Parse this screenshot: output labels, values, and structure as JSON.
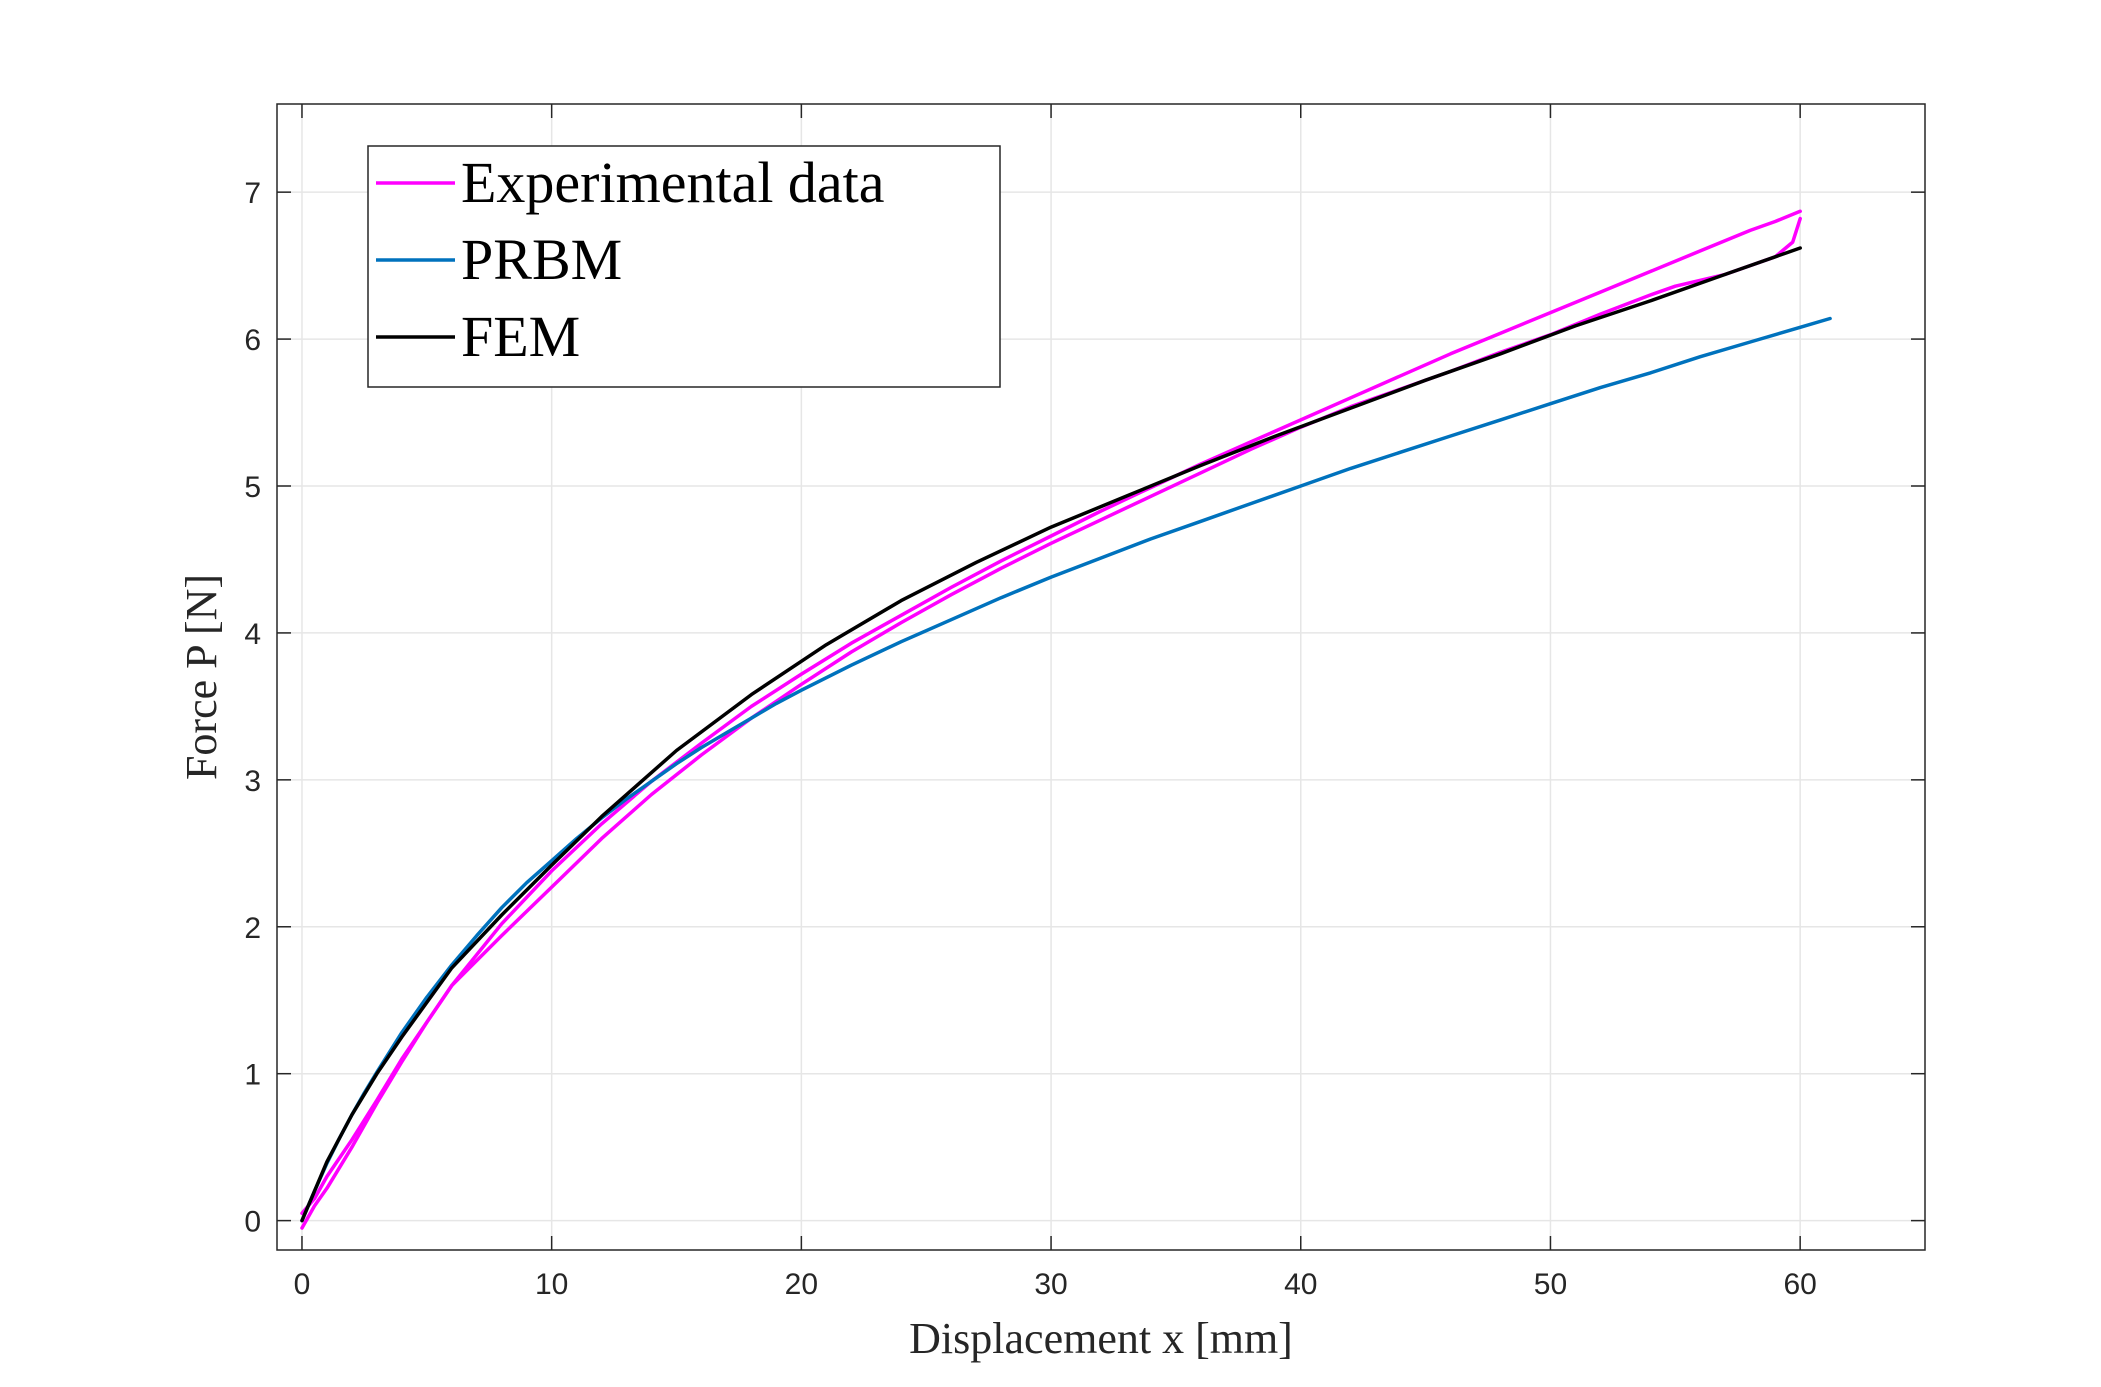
{
  "chart_data": {
    "type": "line",
    "xlabel": "Displacement x [mm]",
    "ylabel": "Force P [N]",
    "xlim": [
      -1,
      65
    ],
    "ylim": [
      -0.2,
      7.6
    ],
    "xticks": [
      0,
      10,
      20,
      30,
      40,
      50,
      60
    ],
    "yticks": [
      0,
      1,
      2,
      3,
      4,
      5,
      6,
      7
    ],
    "xtick_labels": [
      "0",
      "10",
      "20",
      "30",
      "40",
      "50",
      "60"
    ],
    "ytick_labels": [
      "0",
      "1",
      "2",
      "3",
      "4",
      "5",
      "6",
      "7"
    ],
    "grid": true,
    "legend_position": "top-left",
    "series": [
      {
        "name": "Experimental data",
        "color": "#ff00ff",
        "x": [
          0,
          0.5,
          1,
          2,
          3,
          4,
          5,
          6,
          8,
          10,
          12,
          14,
          16,
          18,
          20,
          22,
          24,
          26,
          28,
          30,
          32,
          34,
          36,
          38,
          40,
          42,
          44,
          46,
          48,
          50,
          52,
          54,
          56,
          58,
          59,
          60
        ],
        "y": [
          -0.05,
          0.1,
          0.22,
          0.5,
          0.8,
          1.08,
          1.35,
          1.6,
          2.02,
          2.38,
          2.7,
          2.99,
          3.25,
          3.5,
          3.72,
          3.93,
          4.12,
          4.31,
          4.49,
          4.66,
          4.83,
          4.99,
          5.15,
          5.3,
          5.45,
          5.6,
          5.75,
          5.9,
          6.04,
          6.18,
          6.32,
          6.46,
          6.6,
          6.74,
          6.8,
          6.87
        ]
      },
      {
        "name": "",
        "color": "#ff00ff",
        "x": [
          60,
          59.7,
          59,
          58,
          57,
          56,
          55,
          54,
          52,
          50,
          48,
          46,
          44,
          42,
          40,
          38,
          36,
          34,
          32,
          30,
          28,
          26,
          24,
          22,
          20,
          18,
          16,
          14,
          12,
          10,
          8,
          6,
          4,
          3,
          2,
          1,
          0.5,
          0
        ],
        "y": [
          6.82,
          6.66,
          6.56,
          6.5,
          6.44,
          6.4,
          6.36,
          6.3,
          6.17,
          6.03,
          5.91,
          5.78,
          5.66,
          5.54,
          5.4,
          5.25,
          5.09,
          4.93,
          4.77,
          4.61,
          4.44,
          4.26,
          4.07,
          3.87,
          3.65,
          3.42,
          3.17,
          2.9,
          2.6,
          2.27,
          1.94,
          1.6,
          1.1,
          0.82,
          0.55,
          0.3,
          0.15,
          0.05
        ]
      },
      {
        "name": "PRBM",
        "color": "#0072bd",
        "x": [
          0,
          0.25,
          0.5,
          1,
          1.5,
          2,
          2.5,
          3,
          4,
          5,
          6,
          7,
          8,
          9,
          10,
          11,
          12,
          13,
          14,
          15,
          16,
          17,
          18,
          19,
          20,
          22,
          24,
          26,
          28,
          30,
          32,
          34,
          36,
          38,
          40,
          42,
          44,
          46,
          48,
          50,
          52,
          54,
          56,
          58,
          60,
          61.2
        ],
        "y": [
          0,
          0.1,
          0.2,
          0.39,
          0.56,
          0.72,
          0.87,
          1.01,
          1.28,
          1.52,
          1.74,
          1.94,
          2.13,
          2.3,
          2.45,
          2.6,
          2.74,
          2.87,
          2.99,
          3.11,
          3.22,
          3.32,
          3.42,
          3.52,
          3.61,
          3.78,
          3.94,
          4.09,
          4.24,
          4.38,
          4.51,
          4.64,
          4.76,
          4.88,
          5.0,
          5.12,
          5.23,
          5.34,
          5.45,
          5.56,
          5.67,
          5.77,
          5.88,
          5.98,
          6.08,
          6.14
        ]
      },
      {
        "name": "FEM",
        "color": "#000000",
        "x": [
          0,
          1,
          2,
          3,
          4,
          6,
          8,
          10,
          12,
          15,
          18,
          21,
          24,
          27,
          30,
          33,
          36,
          39,
          42,
          45,
          48,
          51,
          54,
          57,
          60
        ],
        "y": [
          0,
          0.4,
          0.72,
          1.0,
          1.25,
          1.72,
          2.08,
          2.42,
          2.75,
          3.2,
          3.58,
          3.92,
          4.22,
          4.48,
          4.72,
          4.93,
          5.14,
          5.34,
          5.53,
          5.72,
          5.9,
          6.09,
          6.26,
          6.44,
          6.62
        ]
      }
    ]
  }
}
